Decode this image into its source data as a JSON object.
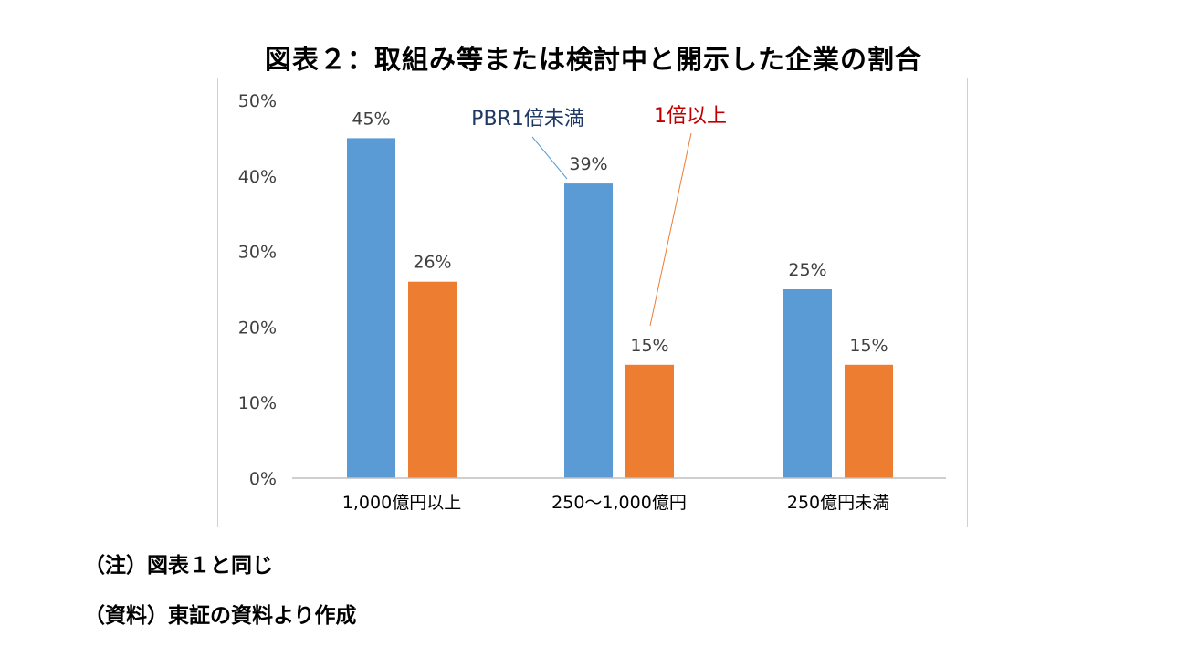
{
  "title": "図表２：取組み等または検討中と開示した企業の割合",
  "chart_data": {
    "type": "bar",
    "categories": [
      "1,000億円以上",
      "250～1,000億円",
      "250億円未満"
    ],
    "series": [
      {
        "name": "PBR1倍未満",
        "values": [
          45,
          39,
          25
        ],
        "labels": [
          "45%",
          "39%",
          "25%"
        ]
      },
      {
        "name": "1倍以上",
        "values": [
          26,
          15,
          15
        ],
        "labels": [
          "26%",
          "15%",
          "15%"
        ]
      }
    ],
    "ylim": [
      0,
      50
    ],
    "yticks": [
      "0%",
      "10%",
      "20%",
      "30%",
      "40%",
      "50%"
    ],
    "grid": false,
    "legend": "callouts"
  },
  "colors": {
    "series1": "#5b9bd5",
    "series2": "#ed7d31",
    "callout1_text": "#1f3864",
    "callout1_line": "#5b9bd5",
    "callout2_text": "#c00000",
    "callout2_line": "#ed7d31",
    "axis": "#bfbfbf"
  },
  "notes": {
    "note1": "（注）図表１と同じ",
    "note2": "（資料）東証の資料より作成"
  }
}
